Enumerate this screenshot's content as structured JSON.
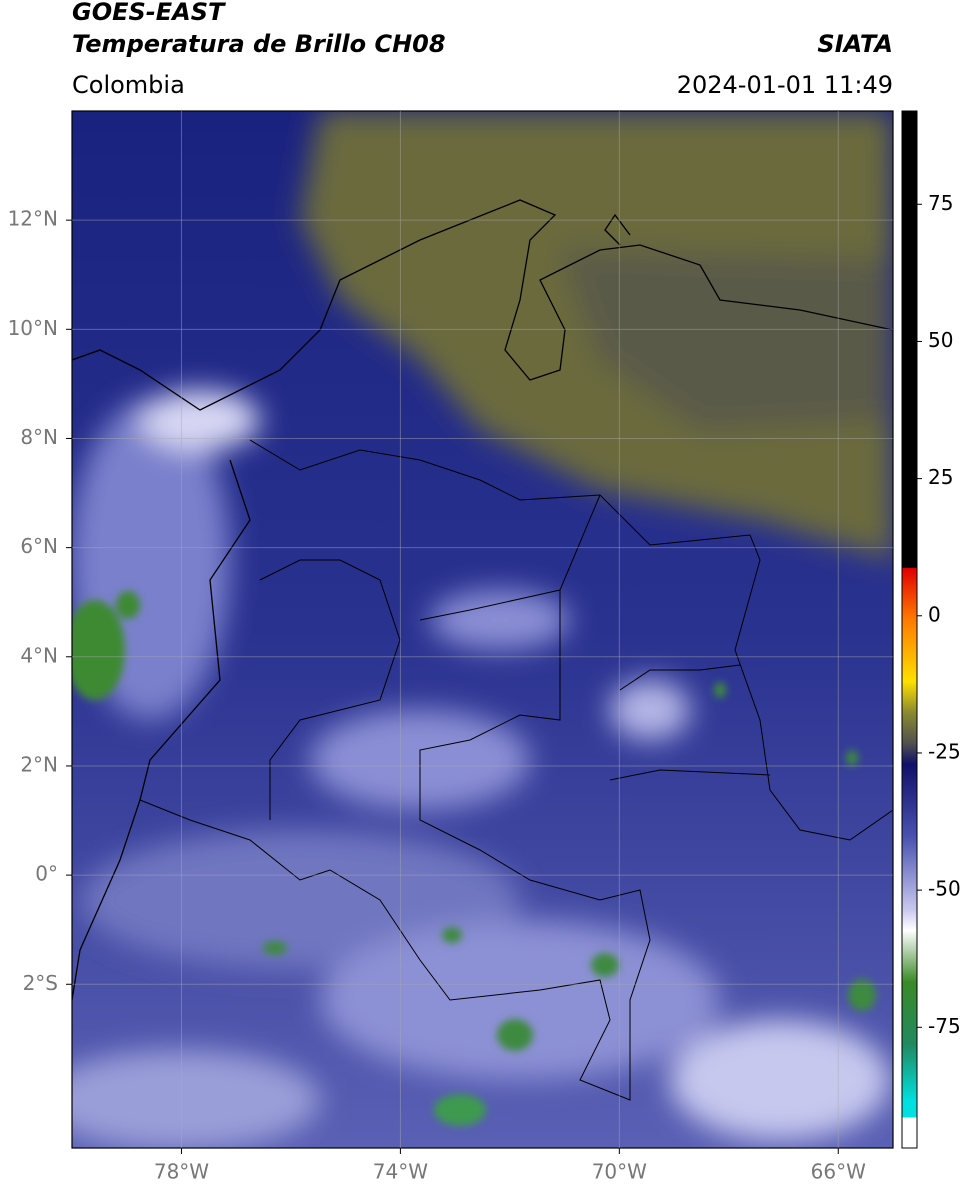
{
  "header": {
    "title": "GOES-EAST",
    "subtitle": "Temperatura de Brillo CH08",
    "region": "Colombia",
    "source": "SIATA",
    "datetime": "2024-01-01 11:49"
  },
  "map": {
    "xlim": [
      -80,
      -65
    ],
    "ylim": [
      -5,
      14
    ],
    "xticks": [
      {
        "value": -78,
        "label": "78°W"
      },
      {
        "value": -74,
        "label": "74°W"
      },
      {
        "value": -70,
        "label": "70°W"
      },
      {
        "value": -66,
        "label": "66°W"
      }
    ],
    "yticks": [
      {
        "value": 12,
        "label": "12°N"
      },
      {
        "value": 10,
        "label": "10°N"
      },
      {
        "value": 8,
        "label": "8°N"
      },
      {
        "value": 6,
        "label": "6°N"
      },
      {
        "value": 4,
        "label": "4°N"
      },
      {
        "value": 2,
        "label": "2°N"
      },
      {
        "value": 0,
        "label": "0°"
      },
      {
        "value": -2,
        "label": "2°S"
      }
    ],
    "grid": true
  },
  "colorbar": {
    "lim": [
      -97,
      92
    ],
    "ticks": [
      75,
      50,
      25,
      0,
      -25,
      -50,
      -75
    ]
  }
}
